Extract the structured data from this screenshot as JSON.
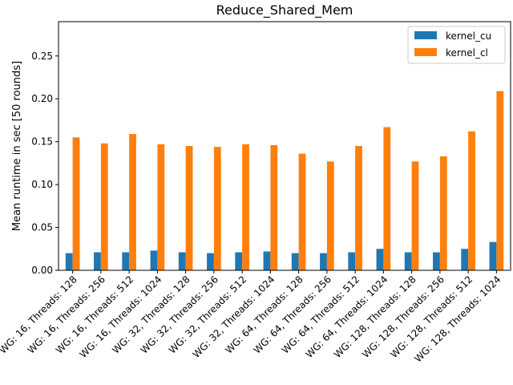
{
  "chart_data": {
    "type": "bar",
    "title": "Reduce_Shared_Mem",
    "xlabel": "",
    "ylabel": "Mean runtime in sec [50 rounds]",
    "ylim": [
      0,
      0.29
    ],
    "yticks": [
      0.0,
      0.05,
      0.1,
      0.15,
      0.2,
      0.25
    ],
    "ytick_labels": [
      "0.00",
      "0.05",
      "0.10",
      "0.15",
      "0.20",
      "0.25"
    ],
    "grid": false,
    "legend_position": "top-right",
    "categories": [
      "WG: 16, Threads: 128",
      "WG: 16, Threads: 256",
      "WG: 16, Threads: 512",
      "WG: 16, Threads: 1024",
      "WG: 32, Threads: 128",
      "WG: 32, Threads: 256",
      "WG: 32, Threads: 512",
      "WG: 32, Threads: 1024",
      "WG: 64, Threads: 128",
      "WG: 64, Threads: 256",
      "WG: 64, Threads: 512",
      "WG: 64, Threads: 1024",
      "WG: 128, Threads: 128",
      "WG: 128, Threads: 256",
      "WG: 128, Threads: 512",
      "WG: 128, Threads: 1024"
    ],
    "series": [
      {
        "name": "kernel_cu",
        "color": "#1f77b4",
        "values": [
          0.02,
          0.021,
          0.021,
          0.023,
          0.021,
          0.02,
          0.021,
          0.022,
          0.02,
          0.02,
          0.021,
          0.025,
          0.021,
          0.021,
          0.025,
          0.033
        ]
      },
      {
        "name": "kernel_cl",
        "color": "#ff7f0e",
        "values": [
          0.155,
          0.148,
          0.159,
          0.147,
          0.145,
          0.144,
          0.147,
          0.146,
          0.136,
          0.127,
          0.145,
          0.167,
          0.127,
          0.133,
          0.162,
          0.209
        ]
      }
    ]
  }
}
